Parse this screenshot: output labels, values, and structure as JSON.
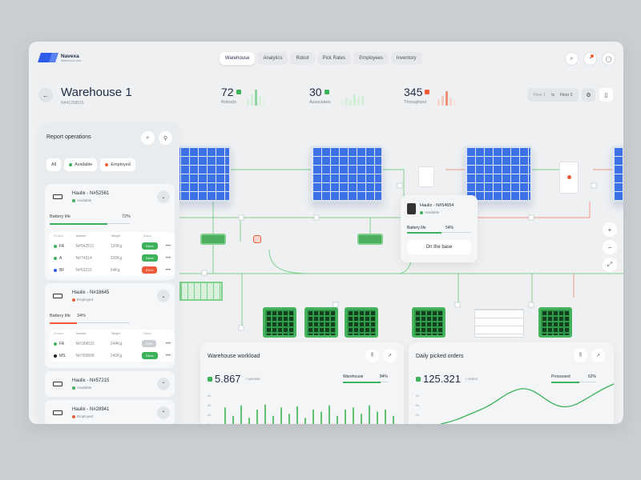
{
  "brand": {
    "name": "Navexa",
    "tagline": "Warehouse tech"
  },
  "nav": {
    "tabs": [
      "Warehouse",
      "Analytics",
      "Robot",
      "Pick Rates",
      "Employees",
      "Inventory"
    ],
    "active": 0
  },
  "header": {
    "title": "Warehouse 1",
    "id": "N#41258915",
    "floor_from": "Floor 1",
    "floor_swap": "⇆",
    "floor_to": "Floor 2"
  },
  "stats": [
    {
      "value": "72",
      "label": "Robods",
      "color": "#3cb35b"
    },
    {
      "value": "30",
      "label": "Associates",
      "color": "#3cb35b"
    },
    {
      "value": "345",
      "label": "Throughput",
      "color": "#ef5b3a"
    }
  ],
  "panel": {
    "title": "Report operations",
    "filters": [
      {
        "label": "All"
      },
      {
        "label": "Available",
        "dot": "#3cb35b"
      },
      {
        "label": "Employed",
        "dot": "#ef5b3a"
      }
    ],
    "battery_label": "Battery life",
    "columns": [
      "Product",
      "Number",
      "Weight",
      "Status"
    ],
    "robots": [
      {
        "name": "Haulix - N#52561",
        "status": "Available",
        "status_color": "#3cb35b",
        "battery": "72%",
        "battery_fraction": 0.72,
        "bar_color": "#3cb35b",
        "rows": [
          {
            "code": "FA",
            "dot": "#3cb35b",
            "number": "N#542511",
            "weight": "120Kg",
            "state": "Done",
            "pill": "#3cb35b"
          },
          {
            "code": "A",
            "dot": "#3cb35b",
            "number": "N#74314",
            "weight": "320Kg",
            "state": "Done",
            "pill": "#3cb35b"
          },
          {
            "code": "BF",
            "dot": "#2f5bea",
            "number": "N#53215",
            "weight": "54Kg",
            "state": "Error",
            "pill": "#ef5b3a"
          }
        ]
      },
      {
        "name": "Haulix - N#18645",
        "status": "Employed",
        "status_color": "#ef5b3a",
        "battery": "34%",
        "battery_fraction": 0.34,
        "bar_color": "#ef5b3a",
        "rows": [
          {
            "code": "FA",
            "dot": "#3cb35b",
            "number": "N#184532",
            "weight": "244Kg",
            "state": "Wait",
            "pill": "#c9ced4"
          },
          {
            "code": "MS",
            "dot": "#222",
            "number": "N#765898",
            "weight": "240Kg",
            "state": "Done",
            "pill": "#3cb35b"
          }
        ]
      },
      {
        "name": "Haulix - N#57215",
        "status": "Available",
        "status_color": "#3cb35b"
      },
      {
        "name": "Haulix - N#28941",
        "status": "Employed",
        "status_color": "#ef5b3a"
      }
    ]
  },
  "popup": {
    "name": "Haulix - N#54654",
    "status": "Available",
    "battery": "54%",
    "battery_fraction": 0.54,
    "button": "On the base"
  },
  "workload": {
    "title": "Warehouse workload",
    "value": "5.867",
    "unit": "/ uploads",
    "metric_label": "Warehouse",
    "metric_value": "84%",
    "metric_fraction": 0.84,
    "yticks": [
      "6k",
      "5k",
      "4k",
      "3k"
    ],
    "bars": [
      0.55,
      0.35,
      0.6,
      0.3,
      0.5,
      0.62,
      0.35,
      0.55,
      0.4,
      0.58,
      0.3,
      0.5,
      0.45,
      0.6,
      0.35,
      0.5,
      0.55,
      0.4,
      0.6,
      0.45,
      0.5,
      0.35
    ]
  },
  "picked": {
    "title": "Daily picked orders",
    "value": "125.321",
    "unit": "/ orders",
    "metric_label": "Processed",
    "metric_value": "62%",
    "metric_fraction": 0.62,
    "yticks": [
      "6k",
      "5k",
      "4k",
      "3k"
    ]
  }
}
